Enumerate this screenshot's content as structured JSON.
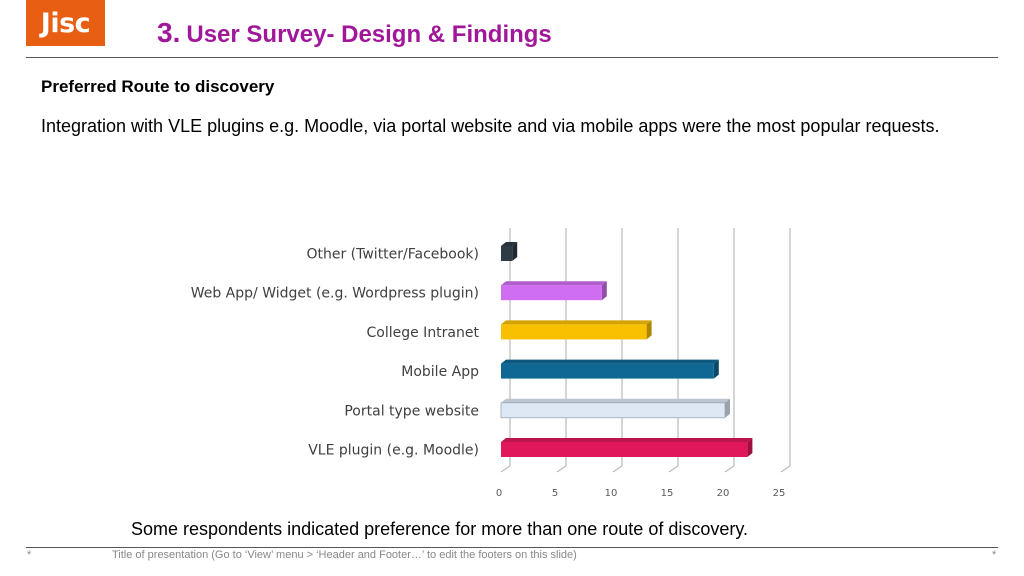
{
  "header": {
    "logo_text": "Jisc",
    "title_number": "3.",
    "title_text": "User Survey- Design & Findings"
  },
  "content": {
    "subheading": "Preferred Route to discovery",
    "paragraph": "Integration with VLE plugins e.g. Moodle, via portal website and via mobile apps were the most popular requests.",
    "note": "Some respondents indicated preference for more than one route of discovery."
  },
  "footer": {
    "left_mark": "*",
    "text": "Title of presentation (Go to ‘View’ menu > ‘Header and Footer…’ to edit the footers on this slide)",
    "right_mark": "*"
  },
  "chart_data": {
    "type": "bar",
    "orientation": "horizontal",
    "categories": [
      "Other (Twitter/Facebook)",
      "Web App/ Widget (e.g. Wordpress plugin)",
      "College Intranet",
      "Mobile App",
      "Portal type website",
      "VLE plugin (e.g. Moodle)"
    ],
    "values": [
      1,
      9,
      13,
      19,
      20,
      22
    ],
    "colors": [
      "#2f3b45",
      "#cf6ef0",
      "#f8c000",
      "#0f6894",
      "#dde8f4",
      "#e0175a"
    ],
    "xlim": [
      0,
      25
    ],
    "xticks": [
      "0",
      "5",
      "10",
      "15",
      "20",
      "25"
    ],
    "grid": true,
    "legend": "none",
    "style": "3d"
  }
}
